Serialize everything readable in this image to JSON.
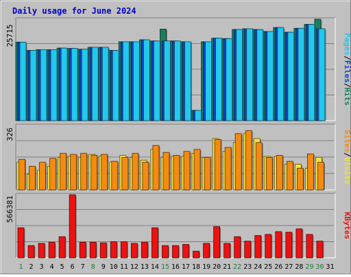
{
  "chart_data": {
    "type": "bar",
    "title": "Daily usage for June 2024",
    "categories": [
      "1",
      "2",
      "3",
      "4",
      "5",
      "6",
      "7",
      "8",
      "9",
      "10",
      "11",
      "12",
      "13",
      "14",
      "15",
      "16",
      "17",
      "18",
      "19",
      "20",
      "21",
      "22",
      "23",
      "24",
      "25",
      "26",
      "27",
      "28",
      "29",
      "30",
      "31"
    ],
    "weekend_days": [
      "1",
      "8",
      "15",
      "22",
      "29",
      "30"
    ],
    "colors": {
      "title": "#0000cc",
      "hits": "#1b7f5f",
      "files": "#1144cc",
      "pages": "#22c8ee",
      "visits": "#f3e33b",
      "sites": "#f38a12",
      "kbytes": "#ee1111",
      "weekend_label": "#1f7a3f",
      "weekday_label": "#000000",
      "panel_bg": "#c0c0c0"
    },
    "panels": [
      {
        "id": "top",
        "max_label": "25715",
        "ymax": 25715,
        "legend": [
          {
            "label": "Pages",
            "color": "#22c8ee"
          },
          {
            "label": "Files",
            "color": "#1144cc"
          },
          {
            "label": "Hits",
            "color": "#1b7f5f"
          }
        ],
        "series": [
          {
            "name": "Hits",
            "color": "#1b7f5f",
            "values": [
              19900,
              17800,
              18000,
              18000,
              18400,
              18300,
              18100,
              18600,
              18600,
              17800,
              20000,
              20000,
              20500,
              20200,
              23200,
              20200,
              20000,
              2600,
              20000,
              20900,
              20800,
              23100,
              23300,
              23100,
              22600,
              23600,
              22400,
              23400,
              24400,
              25715,
              null
            ]
          },
          {
            "name": "Files",
            "color": "#1144cc",
            "values": [
              19900,
              17800,
              18000,
              18000,
              18400,
              18300,
              18100,
              18600,
              18600,
              17800,
              20000,
              20000,
              20500,
              20200,
              20200,
              20200,
              20000,
              2600,
              20000,
              20900,
              20800,
              23100,
              23300,
              23100,
              22600,
              23600,
              22400,
              23400,
              24400,
              23300,
              null
            ]
          },
          {
            "name": "Pages",
            "color": "#22c8ee",
            "values": [
              19900,
              17800,
              18000,
              18000,
              18400,
              18300,
              18100,
              18600,
              18600,
              17800,
              20000,
              20000,
              20500,
              20200,
              20200,
              20200,
              20000,
              2600,
              20000,
              20900,
              20800,
              23100,
              23300,
              23100,
              22600,
              23600,
              22400,
              23400,
              24400,
              23300,
              null
            ]
          }
        ]
      },
      {
        "id": "middle",
        "max_label": "326",
        "ymax": 326,
        "legend": [
          {
            "label": "Sites",
            "color": "#f38a12"
          },
          {
            "label": "Visits",
            "color": "#f3e33b"
          }
        ],
        "series": [
          {
            "name": "Visits",
            "color": "#f3e33b",
            "values": [
              140,
              80,
              100,
              120,
              165,
              170,
              165,
              180,
              172,
              142,
              175,
              165,
              150,
              205,
              165,
              170,
              170,
              185,
              165,
              260,
              195,
              240,
              285,
              260,
              170,
              170,
              130,
              130,
              110,
              165,
              null
            ]
          },
          {
            "name": "Sites",
            "color": "#f38a12",
            "values": [
              155,
              120,
              140,
              160,
              185,
              180,
              185,
              175,
              180,
              145,
              165,
              185,
              140,
              225,
              190,
              175,
              195,
              205,
              165,
              255,
              215,
              285,
              300,
              240,
              165,
              175,
              145,
              110,
              182,
              140,
              null
            ]
          }
        ]
      },
      {
        "id": "bottom",
        "max_label": "566381",
        "ymax": 566381,
        "legend": [
          {
            "label": "KBytes",
            "color": "#ee1111"
          }
        ],
        "series": [
          {
            "name": "KBytes",
            "color": "#ee1111",
            "values": [
              270000,
              110000,
              130000,
              140000,
              190000,
              566381,
              140000,
              140000,
              135000,
              145000,
              145000,
              130000,
              140000,
              270000,
              110000,
              110000,
              120000,
              60000,
              130000,
              280000,
              130000,
              190000,
              150000,
              200000,
              210000,
              235000,
              230000,
              260000,
              210000,
              150000,
              null
            ]
          }
        ]
      }
    ]
  }
}
